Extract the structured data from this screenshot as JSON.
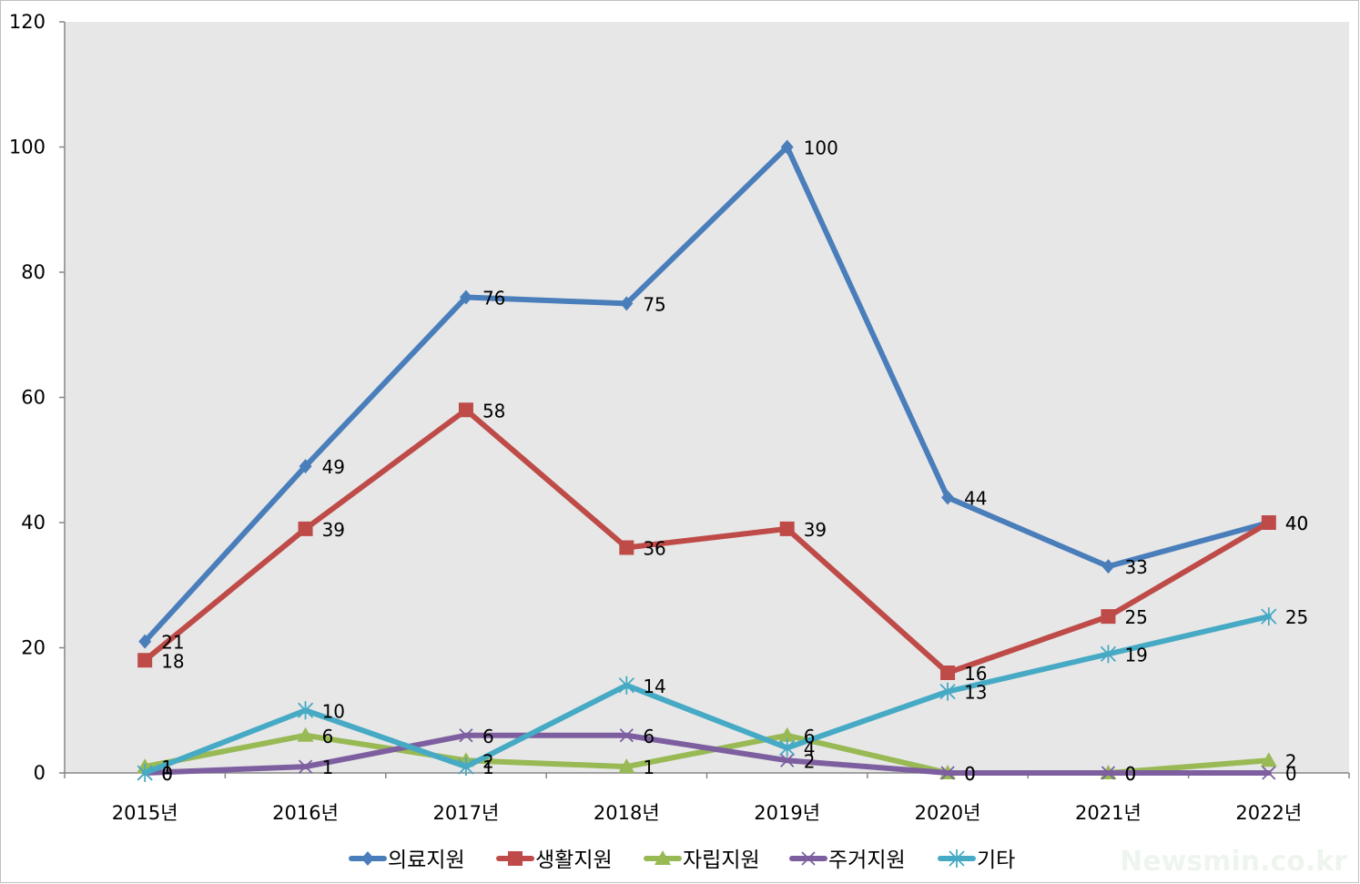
{
  "chart_data": {
    "type": "line",
    "title": "",
    "xlabel": "",
    "ylabel": "",
    "categories": [
      "2015년",
      "2016년",
      "2017년",
      "2018년",
      "2019년",
      "2020년",
      "2021년",
      "2022년"
    ],
    "ylim": [
      0,
      120
    ],
    "yticks": [
      "0",
      "20",
      "40",
      "60",
      "80",
      "100",
      "120"
    ],
    "grid": false,
    "plot_background": "#e7e7e7",
    "legend_position": "bottom",
    "series": [
      {
        "name": "의료지원",
        "color": "#4a7ebb",
        "marker": "diamond",
        "values": [
          21,
          49,
          76,
          75,
          100,
          44,
          33,
          40
        ]
      },
      {
        "name": "생활지원",
        "color": "#be4b48",
        "marker": "square",
        "values": [
          18,
          39,
          58,
          36,
          39,
          16,
          25,
          40
        ]
      },
      {
        "name": "자립지원",
        "color": "#98b954",
        "marker": "triangle",
        "values": [
          1,
          6,
          2,
          1,
          6,
          0,
          0,
          2
        ]
      },
      {
        "name": "주거지원",
        "color": "#7d5fa0",
        "marker": "x",
        "values": [
          0,
          1,
          6,
          6,
          2,
          0,
          0,
          0
        ]
      },
      {
        "name": "기타",
        "color": "#46aac5",
        "marker": "star",
        "values": [
          0,
          10,
          1,
          14,
          4,
          13,
          19,
          25
        ]
      }
    ]
  },
  "watermark": "Newsmin.co.kr"
}
